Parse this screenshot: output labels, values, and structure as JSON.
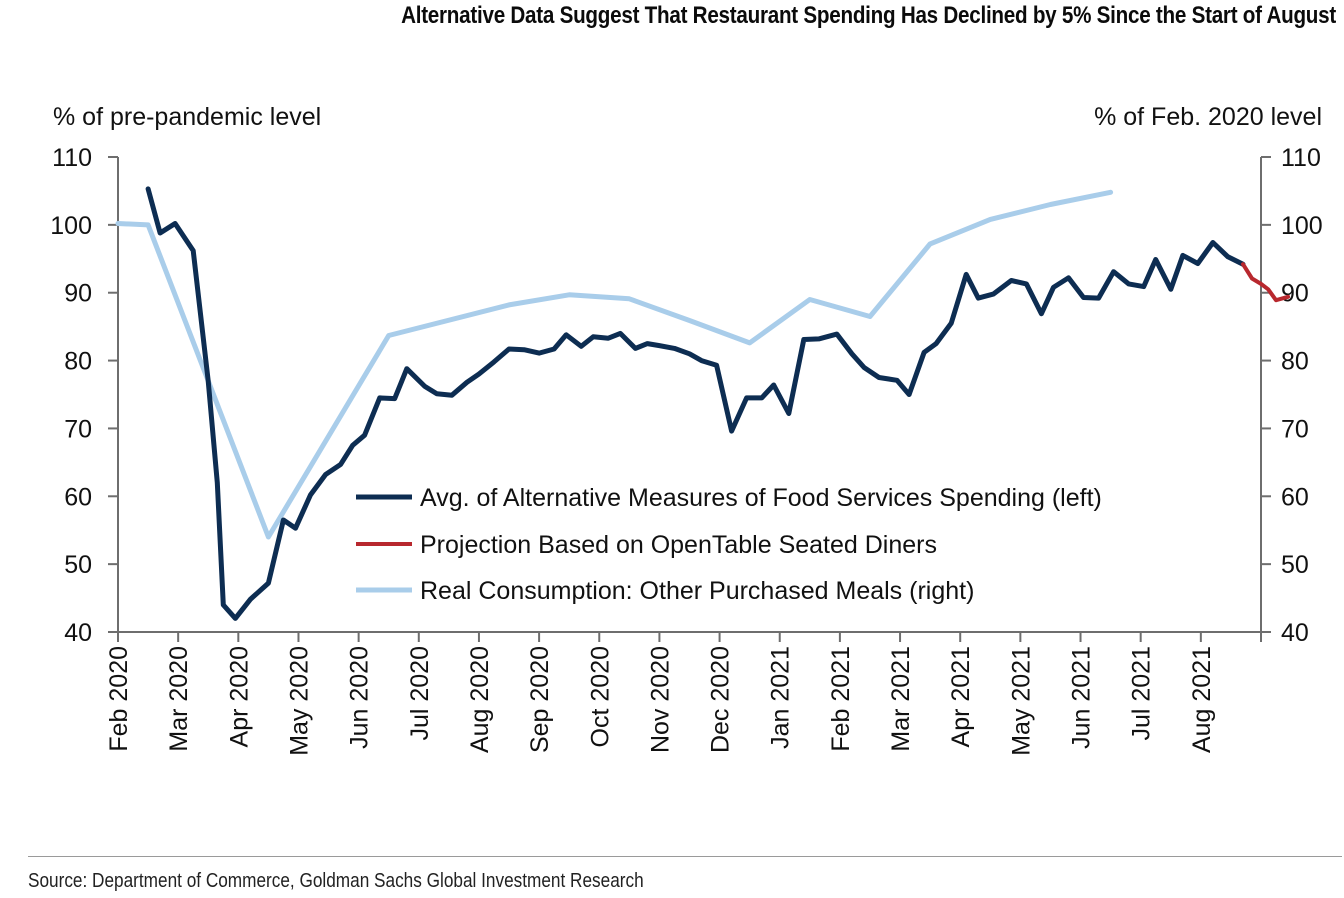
{
  "title": "Alternative Data Suggest That Restaurant Spending Has Declined by 5% Since the Start of August",
  "source": "Source: Department of Commerce, Goldman Sachs Global Investment Research",
  "chart_data": {
    "type": "line",
    "left_axis_label": "% of pre-pandemic level",
    "right_axis_label": "% of Feb. 2020 level",
    "ylim": [
      40,
      110
    ],
    "y2lim": [
      40,
      110
    ],
    "yticks": [
      40,
      50,
      60,
      70,
      80,
      90,
      100,
      110
    ],
    "xlim": [
      0,
      19
    ],
    "x_tick_labels": [
      "Feb 2020",
      "Mar 2020",
      "Apr 2020",
      "May 2020",
      "Jun 2020",
      "Jul 2020",
      "Aug 2020",
      "Sep 2020",
      "Oct 2020",
      "Nov 2020",
      "Dec 2020",
      "Jan 2021",
      "Feb 2021",
      "Mar 2021",
      "Apr 2021",
      "May 2021",
      "Jun 2021",
      "Jul 2021",
      "Aug 2021"
    ],
    "x_unit": "months since Feb 2020",
    "legend_position": "lower-right",
    "series": [
      {
        "name": "Avg. of Alternative Measures of Food Services Spending (left)",
        "axis": "left",
        "color": "#0d2d52",
        "points": [
          [
            0.5,
            105.3
          ],
          [
            0.7,
            98.8
          ],
          [
            0.95,
            100.2
          ],
          [
            1.25,
            96.2
          ],
          [
            1.5,
            77.0
          ],
          [
            1.65,
            62.0
          ],
          [
            1.75,
            44.0
          ],
          [
            1.95,
            42.0
          ],
          [
            2.2,
            44.8
          ],
          [
            2.5,
            47.2
          ],
          [
            2.75,
            56.5
          ],
          [
            2.95,
            55.3
          ],
          [
            3.2,
            60.2
          ],
          [
            3.45,
            63.2
          ],
          [
            3.7,
            64.7
          ],
          [
            3.9,
            67.5
          ],
          [
            4.1,
            69.0
          ],
          [
            4.35,
            74.5
          ],
          [
            4.6,
            74.4
          ],
          [
            4.8,
            78.8
          ],
          [
            5.1,
            76.2
          ],
          [
            5.3,
            75.1
          ],
          [
            5.55,
            74.9
          ],
          [
            5.8,
            76.8
          ],
          [
            6.0,
            78.0
          ],
          [
            6.25,
            79.8
          ],
          [
            6.5,
            81.7
          ],
          [
            6.75,
            81.6
          ],
          [
            7.0,
            81.1
          ],
          [
            7.25,
            81.7
          ],
          [
            7.45,
            83.8
          ],
          [
            7.7,
            82.1
          ],
          [
            7.9,
            83.5
          ],
          [
            8.15,
            83.3
          ],
          [
            8.35,
            84.0
          ],
          [
            8.6,
            81.8
          ],
          [
            8.8,
            82.5
          ],
          [
            9.0,
            82.2
          ],
          [
            9.25,
            81.8
          ],
          [
            9.5,
            81.0
          ],
          [
            9.7,
            80.0
          ],
          [
            9.95,
            79.3
          ],
          [
            10.2,
            69.6
          ],
          [
            10.45,
            74.5
          ],
          [
            10.7,
            74.5
          ],
          [
            10.9,
            76.4
          ],
          [
            11.15,
            72.2
          ],
          [
            11.4,
            83.1
          ],
          [
            11.65,
            83.2
          ],
          [
            11.95,
            83.9
          ],
          [
            12.2,
            81.0
          ],
          [
            12.4,
            79.0
          ],
          [
            12.65,
            77.5
          ],
          [
            12.95,
            77.1
          ],
          [
            13.15,
            75.0
          ],
          [
            13.4,
            81.2
          ],
          [
            13.6,
            82.5
          ],
          [
            13.85,
            85.5
          ],
          [
            14.1,
            92.7
          ],
          [
            14.3,
            89.2
          ],
          [
            14.55,
            89.8
          ],
          [
            14.85,
            91.8
          ],
          [
            15.1,
            91.3
          ],
          [
            15.35,
            86.9
          ],
          [
            15.55,
            90.8
          ],
          [
            15.8,
            92.2
          ],
          [
            16.05,
            89.3
          ],
          [
            16.3,
            89.2
          ],
          [
            16.55,
            93.1
          ],
          [
            16.8,
            91.3
          ],
          [
            17.05,
            90.9
          ],
          [
            17.25,
            94.9
          ],
          [
            17.5,
            90.5
          ],
          [
            17.7,
            95.5
          ],
          [
            17.95,
            94.3
          ],
          [
            18.2,
            97.4
          ],
          [
            18.45,
            95.3
          ],
          [
            18.7,
            94.2
          ]
        ]
      },
      {
        "name": "Projection Based on OpenTable Seated Diners",
        "axis": "left",
        "color": "#b8282e",
        "points": [
          [
            18.7,
            94.2
          ],
          [
            18.85,
            92.1
          ],
          [
            19.0,
            91.3
          ],
          [
            19.12,
            90.5
          ],
          [
            19.25,
            88.9
          ],
          [
            19.45,
            89.4
          ]
        ]
      },
      {
        "name": "Real Consumption: Other Purchased Meals (right)",
        "axis": "right",
        "color": "#a9cdea",
        "points": [
          [
            0,
            100.2
          ],
          [
            0.5,
            100.0
          ],
          [
            2.5,
            54.0
          ],
          [
            4.5,
            83.7
          ],
          [
            6.5,
            88.2
          ],
          [
            7.5,
            89.7
          ],
          [
            8.5,
            89.1
          ],
          [
            9.5,
            85.9
          ],
          [
            10.5,
            82.6
          ],
          [
            11.5,
            89.0
          ],
          [
            12.5,
            86.5
          ],
          [
            13.5,
            97.2
          ],
          [
            14.5,
            100.8
          ],
          [
            15.5,
            103.0
          ],
          [
            16.5,
            104.8
          ]
        ]
      }
    ]
  }
}
